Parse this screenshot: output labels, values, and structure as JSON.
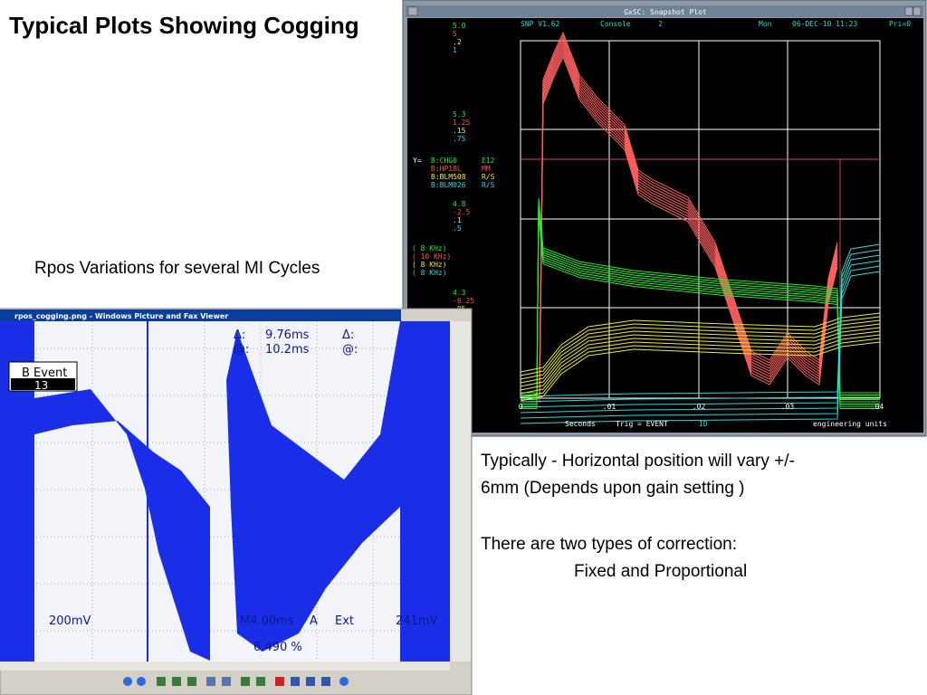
{
  "slide": {
    "title": "Typical Plots Showing Cogging",
    "left_caption": "Rpos Variations for several MI Cycles",
    "body": [
      "Typically - Horizontal position will vary +/-",
      "6mm  (Depends upon gain setting )",
      "There are two types of correction:",
      "Fixed and Proportional"
    ]
  },
  "snapshot": {
    "window_title": "GxSC: Snapshot Plot",
    "header": [
      "SNP V1.62",
      "Console",
      "2",
      "Mon",
      "06-DEC-10 11:23",
      "Pri=0"
    ],
    "axis_groups": [
      [
        "5.0",
        "5",
        ".2",
        "1"
      ],
      [
        "5.3",
        "1.25",
        ".15",
        ".75"
      ],
      [
        "4.8",
        "-2.5",
        ".1",
        ".5"
      ],
      [
        "4.3",
        "-6.25",
        ".05",
        ".25"
      ],
      [
        "3.8",
        "-10",
        "0",
        "0"
      ]
    ],
    "y_label": "Y=",
    "legend": [
      [
        "B:CHG0",
        "E12"
      ],
      [
        "B:HP18L",
        "MM"
      ],
      [
        "B:BLM508",
        "R/S"
      ],
      [
        "B:BLM026",
        "R/S"
      ]
    ],
    "rates": [
      "( 8   KHz)",
      "( 10  KHz)",
      "( 8   KHz)",
      "( 8   KHz)"
    ],
    "x_ticks": [
      "0",
      ".01",
      ".02",
      ".03",
      ".04"
    ],
    "footer": [
      "PLOTTING",
      "Seconds",
      "Trig = EVENT",
      "1D",
      "engineering units"
    ]
  },
  "viewer": {
    "window_title": "rpos_cogging.png - Windows Picture and Fax Viewer",
    "cursor": [
      "Δ:",
      "9.76ms",
      "@:",
      "10.2ms",
      "Δ:",
      "@:"
    ],
    "event_label": "B Event",
    "event_number": "13",
    "status": [
      "200mV",
      "M4.00ms",
      "A",
      "Ext",
      "241mV",
      "6.490 %"
    ]
  }
}
